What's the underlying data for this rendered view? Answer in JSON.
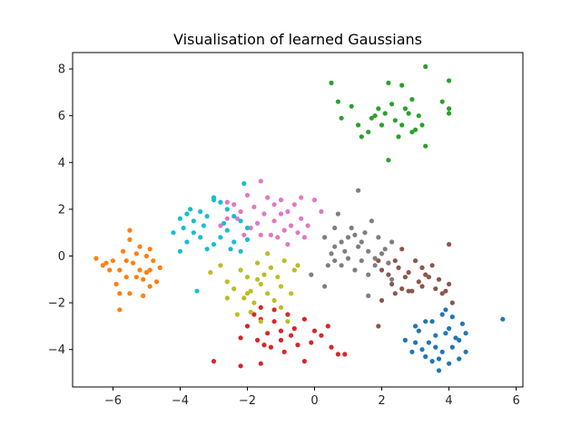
{
  "chart_data": {
    "type": "scatter",
    "title": "Visualisation of learned Gaussians",
    "xlabel": "",
    "ylabel": "",
    "xlim": [
      -7.2,
      6.2
    ],
    "ylim": [
      -5.6,
      8.7
    ],
    "x_ticks": [
      -6,
      -4,
      -2,
      0,
      2,
      4,
      6
    ],
    "x_tick_labels": [
      "−6",
      "−4",
      "−2",
      "0",
      "2",
      "4",
      "6"
    ],
    "y_ticks": [
      -4,
      -2,
      0,
      2,
      4,
      6,
      8
    ],
    "y_tick_labels": [
      "−4",
      "−2",
      "0",
      "2",
      "4",
      "6",
      "8"
    ],
    "grid": false,
    "legend": "none",
    "series": [
      {
        "color": "#1f77b4",
        "points": [
          [
            5.6,
            -2.7
          ],
          [
            4.5,
            -4.1
          ],
          [
            3.9,
            -3.3
          ],
          [
            3.6,
            -3.9
          ],
          [
            3.7,
            -4.9
          ],
          [
            3.5,
            -2.8
          ],
          [
            3.3,
            -4.3
          ],
          [
            2.9,
            -4.1
          ],
          [
            2.7,
            -3.6
          ],
          [
            3.8,
            -2.5
          ],
          [
            4.2,
            -3.5
          ],
          [
            4.4,
            -2.9
          ],
          [
            3.1,
            -3.2
          ],
          [
            4.1,
            -3.9
          ],
          [
            3.7,
            -4.4
          ],
          [
            4.3,
            -4.4
          ],
          [
            3.9,
            -2.3
          ],
          [
            3.0,
            -3.7
          ],
          [
            3.5,
            -4.5
          ],
          [
            4.0,
            -3.1
          ],
          [
            3.3,
            -2.8
          ],
          [
            3.6,
            -3.4
          ],
          [
            4.5,
            -3.3
          ],
          [
            3.2,
            -4.0
          ],
          [
            4.1,
            -2.6
          ],
          [
            3.4,
            -3.7
          ],
          [
            3.8,
            -4.1
          ],
          [
            4.0,
            -4.6
          ],
          [
            3.0,
            -3.0
          ],
          [
            4.3,
            -3.6
          ]
        ]
      },
      {
        "color": "#ff7f0e",
        "points": [
          [
            -6.5,
            -0.1
          ],
          [
            -6.3,
            -0.4
          ],
          [
            -6.0,
            -0.2
          ],
          [
            -5.8,
            -0.6
          ],
          [
            -5.9,
            -1.2
          ],
          [
            -5.8,
            -2.3
          ],
          [
            -5.5,
            -1.6
          ],
          [
            -5.3,
            -0.9
          ],
          [
            -5.1,
            -1.7
          ],
          [
            -4.9,
            -1.3
          ],
          [
            -4.7,
            -1.1
          ],
          [
            -4.9,
            -0.6
          ],
          [
            -4.8,
            -0.2
          ],
          [
            -5.0,
            0.0
          ],
          [
            -5.2,
            0.4
          ],
          [
            -5.5,
            0.7
          ],
          [
            -5.5,
            1.1
          ],
          [
            -5.7,
            0.2
          ],
          [
            -5.4,
            -0.3
          ],
          [
            -5.2,
            -0.6
          ],
          [
            -5.6,
            -0.9
          ],
          [
            -6.1,
            -0.6
          ],
          [
            -5.0,
            -0.7
          ],
          [
            -5.3,
            0.1
          ],
          [
            -4.6,
            -0.5
          ],
          [
            -5.8,
            -1.6
          ],
          [
            -6.2,
            -0.3
          ],
          [
            -5.1,
            -1.0
          ],
          [
            -5.6,
            -0.2
          ],
          [
            -4.9,
            0.3
          ]
        ]
      },
      {
        "color": "#2ca02c",
        "points": [
          [
            3.3,
            8.1
          ],
          [
            4.0,
            7.5
          ],
          [
            0.5,
            7.4
          ],
          [
            2.2,
            7.4
          ],
          [
            2.6,
            7.3
          ],
          [
            0.7,
            6.6
          ],
          [
            1.1,
            6.4
          ],
          [
            2.9,
            6.7
          ],
          [
            3.8,
            6.6
          ],
          [
            4.0,
            6.3
          ],
          [
            0.8,
            5.9
          ],
          [
            1.3,
            5.6
          ],
          [
            1.6,
            5.3
          ],
          [
            1.8,
            6.0
          ],
          [
            2.1,
            6.1
          ],
          [
            2.4,
            5.8
          ],
          [
            2.6,
            5.6
          ],
          [
            2.8,
            6.1
          ],
          [
            3.0,
            5.4
          ],
          [
            3.2,
            5.6
          ],
          [
            3.3,
            4.7
          ],
          [
            2.2,
            4.1
          ],
          [
            2.5,
            5.1
          ],
          [
            1.4,
            5.1
          ],
          [
            1.9,
            6.3
          ],
          [
            2.7,
            6.3
          ],
          [
            3.1,
            6.0
          ],
          [
            2.3,
            6.5
          ],
          [
            4.0,
            6.1
          ],
          [
            1.7,
            5.9
          ],
          [
            2.9,
            5.3
          ],
          [
            2.0,
            5.6
          ]
        ]
      },
      {
        "color": "#d62728",
        "points": [
          [
            -3.0,
            -4.5
          ],
          [
            -2.2,
            -4.7
          ],
          [
            -1.6,
            -4.6
          ],
          [
            -1.5,
            -3.8
          ],
          [
            -1.3,
            -3.9
          ],
          [
            -1.0,
            -3.2
          ],
          [
            -1.2,
            -2.8
          ],
          [
            -1.6,
            -2.7
          ],
          [
            -1.8,
            -2.5
          ],
          [
            -2.0,
            -3.0
          ],
          [
            -2.2,
            -3.5
          ],
          [
            -1.6,
            -2.2
          ],
          [
            -1.2,
            -2.3
          ],
          [
            -0.7,
            -3.4
          ],
          [
            -0.5,
            -3.8
          ],
          [
            -0.3,
            -4.5
          ],
          [
            -0.1,
            -3.7
          ],
          [
            0.2,
            -3.4
          ],
          [
            0.4,
            -3.0
          ],
          [
            0.5,
            -3.9
          ],
          [
            0.7,
            -4.2
          ],
          [
            0.9,
            -4.2
          ],
          [
            -0.3,
            -2.7
          ],
          [
            -0.8,
            -2.5
          ],
          [
            -1.0,
            -3.6
          ],
          [
            -0.6,
            -3.1
          ],
          [
            -1.4,
            -3.3
          ],
          [
            -0.9,
            -4.1
          ],
          [
            0.0,
            -3.2
          ],
          [
            -1.7,
            -3.6
          ]
        ]
      },
      {
        "color": "#8c564b",
        "points": [
          [
            1.9,
            -0.2
          ],
          [
            2.0,
            -0.6
          ],
          [
            2.2,
            -0.8
          ],
          [
            2.3,
            -1.2
          ],
          [
            2.5,
            -0.5
          ],
          [
            2.6,
            -1.4
          ],
          [
            2.8,
            -0.7
          ],
          [
            3.0,
            -0.2
          ],
          [
            3.2,
            -0.5
          ],
          [
            3.4,
            -0.9
          ],
          [
            3.6,
            -1.4
          ],
          [
            3.8,
            -1.6
          ],
          [
            4.0,
            -1.2
          ],
          [
            4.1,
            -2.0
          ],
          [
            3.5,
            -0.4
          ],
          [
            3.1,
            -1.1
          ],
          [
            2.4,
            -1.6
          ],
          [
            2.0,
            -1.9
          ],
          [
            2.9,
            -1.5
          ],
          [
            2.7,
            -0.9
          ],
          [
            2.2,
            -0.3
          ],
          [
            3.3,
            -0.8
          ],
          [
            4.0,
            0.5
          ],
          [
            3.7,
            -1.0
          ],
          [
            2.4,
            -0.2
          ],
          [
            2.6,
            0.3
          ],
          [
            3.9,
            -1.5
          ],
          [
            3.2,
            -1.3
          ],
          [
            2.8,
            -1.5
          ],
          [
            1.9,
            -3.0
          ]
        ]
      },
      {
        "color": "#7f7f7f",
        "points": [
          [
            0.6,
            1.2
          ],
          [
            0.7,
            1.8
          ],
          [
            0.8,
            0.6
          ],
          [
            1.2,
            0.9
          ],
          [
            1.3,
            0.4
          ],
          [
            1.5,
            1.0
          ],
          [
            1.7,
            1.5
          ],
          [
            1.9,
            0.8
          ],
          [
            2.1,
            0.3
          ],
          [
            2.3,
            0.6
          ],
          [
            2.2,
            -0.3
          ],
          [
            1.8,
            -0.4
          ],
          [
            1.6,
            -0.8
          ],
          [
            1.4,
            -0.2
          ],
          [
            1.2,
            -0.6
          ],
          [
            1.0,
            -0.1
          ],
          [
            0.8,
            -0.4
          ],
          [
            0.6,
            -0.2
          ],
          [
            0.4,
            -0.4
          ],
          [
            0.3,
            0.8
          ],
          [
            0.6,
            0.4
          ],
          [
            0.9,
            0.2
          ],
          [
            1.1,
            1.2
          ],
          [
            1.3,
            2.8
          ],
          [
            1.6,
            0.2
          ],
          [
            1.8,
            -0.1
          ],
          [
            2.0,
            0.1
          ],
          [
            1.4,
            0.6
          ],
          [
            0.5,
            0.1
          ],
          [
            -0.1,
            -0.8
          ],
          [
            0.3,
            -1.3
          ],
          [
            1.6,
            -1.7
          ],
          [
            2.3,
            -1.0
          ],
          [
            1.0,
            0.8
          ]
        ]
      },
      {
        "color": "#e377c2",
        "points": [
          [
            -2.8,
            1.3
          ],
          [
            -2.6,
            1.6
          ],
          [
            -2.4,
            2.2
          ],
          [
            -2.2,
            1.9
          ],
          [
            -2.0,
            2.6
          ],
          [
            -1.8,
            2.1
          ],
          [
            -1.6,
            3.2
          ],
          [
            -1.4,
            2.5
          ],
          [
            -1.2,
            2.2
          ],
          [
            -1.0,
            2.4
          ],
          [
            -0.8,
            1.9
          ],
          [
            -0.6,
            2.2
          ],
          [
            -0.4,
            1.6
          ],
          [
            -0.2,
            1.3
          ],
          [
            0.0,
            2.4
          ],
          [
            0.2,
            1.9
          ],
          [
            -0.3,
            0.8
          ],
          [
            -0.5,
            1.0
          ],
          [
            -0.7,
            1.3
          ],
          [
            -0.9,
            1.1
          ],
          [
            -1.1,
            0.8
          ],
          [
            -1.3,
            0.9
          ],
          [
            -1.5,
            1.8
          ],
          [
            -1.7,
            1.4
          ],
          [
            -1.9,
            1.2
          ],
          [
            -2.1,
            0.9
          ],
          [
            -2.3,
            1.6
          ],
          [
            -1.2,
            1.5
          ],
          [
            -0.4,
            2.5
          ],
          [
            -0.8,
            0.5
          ],
          [
            -1.6,
            0.9
          ],
          [
            -2.6,
            2.3
          ],
          [
            -1.0,
            1.8
          ]
        ]
      },
      {
        "color": "#bcbd22",
        "points": [
          [
            -3.1,
            -0.7
          ],
          [
            -2.8,
            -0.4
          ],
          [
            -2.6,
            -1.1
          ],
          [
            -2.4,
            -1.4
          ],
          [
            -2.2,
            -0.6
          ],
          [
            -2.0,
            -0.9
          ],
          [
            -1.9,
            -1.5
          ],
          [
            -1.8,
            -2.0
          ],
          [
            -1.7,
            -0.3
          ],
          [
            -1.6,
            -1.2
          ],
          [
            -1.5,
            -0.8
          ],
          [
            -1.4,
            -1.6
          ],
          [
            -1.3,
            -0.5
          ],
          [
            -1.2,
            -1.9
          ],
          [
            -1.1,
            -0.9
          ],
          [
            -1.0,
            -1.3
          ],
          [
            -0.9,
            -0.2
          ],
          [
            -0.8,
            -2.8
          ],
          [
            -0.7,
            -1.6
          ],
          [
            -0.6,
            -0.6
          ],
          [
            -1.9,
            -2.4
          ],
          [
            -2.3,
            -2.5
          ],
          [
            -2.6,
            -1.8
          ],
          [
            -1.6,
            -2.8
          ],
          [
            -1.0,
            -2.2
          ],
          [
            -2.1,
            -1.8
          ],
          [
            -1.4,
            0.1
          ],
          [
            -0.5,
            -0.4
          ],
          [
            -1.7,
            -1.0
          ],
          [
            -2.0,
            -1.6
          ]
        ]
      },
      {
        "color": "#17becf",
        "points": [
          [
            -4.0,
            1.6
          ],
          [
            -3.8,
            1.8
          ],
          [
            -3.6,
            1.5
          ],
          [
            -3.4,
            1.9
          ],
          [
            -3.2,
            1.7
          ],
          [
            -3.0,
            2.4
          ],
          [
            -2.8,
            2.3
          ],
          [
            -2.6,
            2.0
          ],
          [
            -2.4,
            1.7
          ],
          [
            -2.2,
            1.5
          ],
          [
            -2.0,
            1.2
          ],
          [
            -2.6,
            1.1
          ],
          [
            -2.8,
            0.8
          ],
          [
            -3.0,
            0.5
          ],
          [
            -3.2,
            0.3
          ],
          [
            -3.4,
            0.8
          ],
          [
            -3.6,
            1.0
          ],
          [
            -3.8,
            0.6
          ],
          [
            -4.0,
            0.2
          ],
          [
            -4.2,
            1.0
          ],
          [
            -2.4,
            0.6
          ],
          [
            -2.2,
            0.2
          ],
          [
            -2.0,
            0.7
          ],
          [
            -3.5,
            -1.5
          ],
          [
            -3.0,
            2.5
          ],
          [
            -2.7,
            1.4
          ],
          [
            -3.3,
            1.3
          ],
          [
            -2.5,
            0.3
          ],
          [
            -3.9,
            1.2
          ],
          [
            -2.1,
            3.1
          ],
          [
            -3.7,
            2.0
          ]
        ]
      }
    ]
  }
}
